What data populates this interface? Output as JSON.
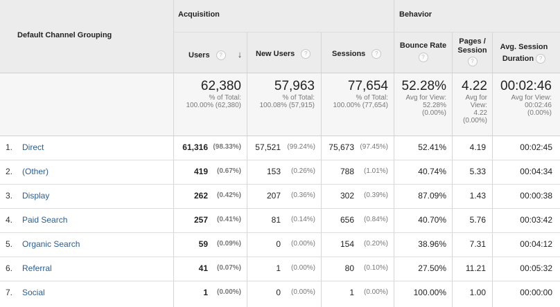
{
  "header": {
    "dimension": "Default Channel Grouping",
    "acquisition": "Acquisition",
    "behavior": "Behavior",
    "users": "Users",
    "new_users": "New Users",
    "sessions": "Sessions",
    "bounce_rate": "Bounce Rate",
    "pages_per_session_line1": "Pages /",
    "pages_per_session_line2": "Session",
    "avg_session_line1": "Avg. Session",
    "avg_session_line2": "Duration",
    "help_glyph": "?",
    "sort_glyph": "↓"
  },
  "totals": {
    "users": {
      "value": "62,380",
      "l1": "% of Total:",
      "l2": "100.00% (62,380)"
    },
    "new_users": {
      "value": "57,963",
      "l1": "% of Total:",
      "l2": "100.08% (57,915)"
    },
    "sessions": {
      "value": "77,654",
      "l1": "% of Total:",
      "l2": "100.00% (77,654)"
    },
    "bounce_rate": {
      "value": "52.28%",
      "l1": "Avg for View:",
      "l2": "52.28%",
      "l3": "(0.00%)"
    },
    "pages": {
      "value": "4.22",
      "l1": "Avg for",
      "l2": "View:",
      "l3": "4.22",
      "l4": "(0.00%)"
    },
    "duration": {
      "value": "00:02:46",
      "l1": "Avg for View:",
      "l2": "00:02:46",
      "l3": "(0.00%)"
    }
  },
  "rows": [
    {
      "num": "1.",
      "name": "Direct",
      "users": "61,316",
      "users_pct": "(98.33%)",
      "new_users": "57,521",
      "new_users_pct": "(99.24%)",
      "sessions": "75,673",
      "sessions_pct": "(97.45%)",
      "bounce": "52.41%",
      "pages": "4.19",
      "duration": "00:02:45"
    },
    {
      "num": "2.",
      "name": "(Other)",
      "users": "419",
      "users_pct": "(0.67%)",
      "new_users": "153",
      "new_users_pct": "(0.26%)",
      "sessions": "788",
      "sessions_pct": "(1.01%)",
      "bounce": "40.74%",
      "pages": "5.33",
      "duration": "00:04:34"
    },
    {
      "num": "3.",
      "name": "Display",
      "users": "262",
      "users_pct": "(0.42%)",
      "new_users": "207",
      "new_users_pct": "(0.36%)",
      "sessions": "302",
      "sessions_pct": "(0.39%)",
      "bounce": "87.09%",
      "pages": "1.43",
      "duration": "00:00:38"
    },
    {
      "num": "4.",
      "name": "Paid Search",
      "users": "257",
      "users_pct": "(0.41%)",
      "new_users": "81",
      "new_users_pct": "(0.14%)",
      "sessions": "656",
      "sessions_pct": "(0.84%)",
      "bounce": "40.70%",
      "pages": "5.76",
      "duration": "00:03:42"
    },
    {
      "num": "5.",
      "name": "Organic Search",
      "users": "59",
      "users_pct": "(0.09%)",
      "new_users": "0",
      "new_users_pct": "(0.00%)",
      "sessions": "154",
      "sessions_pct": "(0.20%)",
      "bounce": "38.96%",
      "pages": "7.31",
      "duration": "00:04:12"
    },
    {
      "num": "6.",
      "name": "Referral",
      "users": "41",
      "users_pct": "(0.07%)",
      "new_users": "1",
      "new_users_pct": "(0.00%)",
      "sessions": "80",
      "sessions_pct": "(0.10%)",
      "bounce": "27.50%",
      "pages": "11.21",
      "duration": "00:05:32"
    },
    {
      "num": "7.",
      "name": "Social",
      "users": "1",
      "users_pct": "(0.00%)",
      "new_users": "0",
      "new_users_pct": "(0.00%)",
      "sessions": "1",
      "sessions_pct": "(0.00%)",
      "bounce": "100.00%",
      "pages": "1.00",
      "duration": "00:00:00"
    }
  ]
}
